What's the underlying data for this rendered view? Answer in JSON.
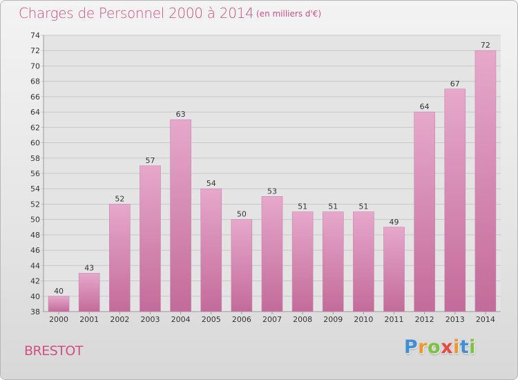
{
  "chart_data": {
    "type": "bar",
    "title": "Charges de Personnel 2000 à 2014",
    "subtitle": "(en milliers d'€)",
    "categories": [
      "2000",
      "2001",
      "2002",
      "2003",
      "2004",
      "2005",
      "2006",
      "2007",
      "2008",
      "2009",
      "2010",
      "2011",
      "2012",
      "2013",
      "2014"
    ],
    "values": [
      40,
      43,
      52,
      57,
      63,
      54,
      50,
      53,
      51,
      51,
      51,
      49,
      64,
      67,
      72
    ],
    "ylim": [
      38,
      74
    ],
    "yticks": [
      38,
      40,
      42,
      44,
      46,
      48,
      50,
      52,
      54,
      56,
      58,
      60,
      62,
      64,
      66,
      68,
      70,
      72,
      74
    ],
    "grid": true,
    "bar_color_top": "#e6a8cb",
    "bar_color_bottom": "#c36b9a"
  },
  "place": "BRESTOT",
  "brand": {
    "letters": [
      "P",
      "r",
      "o",
      "x",
      "i",
      "t",
      "i"
    ],
    "colors": [
      "#3f8fd2",
      "#f0962e",
      "#7cc242",
      "#e8483e",
      "#f0962e",
      "#3f8fd2",
      "#7cc242"
    ]
  },
  "colors": {
    "title": "#d24f80",
    "grid": "#c8c8c8",
    "plot_background": "#e4e4e4"
  }
}
